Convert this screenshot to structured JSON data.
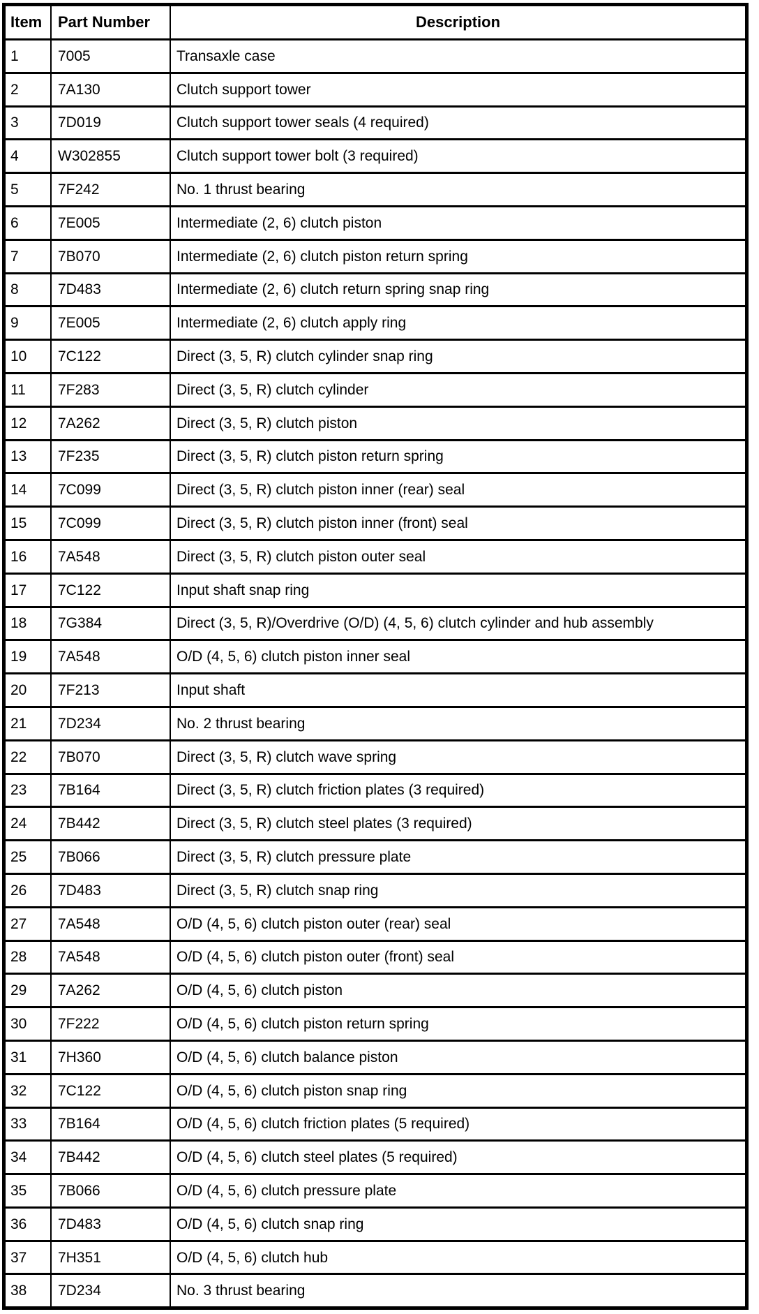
{
  "page": {
    "background_color": "#ffffff",
    "text_color": "#000000",
    "border_color": "#000000"
  },
  "table": {
    "headers": {
      "item": "Item",
      "part_number": "Part Number",
      "description": "Description"
    },
    "rows": [
      {
        "item": "1",
        "part_number": "7005",
        "description": "Transaxle case"
      },
      {
        "item": "2",
        "part_number": "7A130",
        "description": "Clutch support tower"
      },
      {
        "item": "3",
        "part_number": "7D019",
        "description": "Clutch support tower seals (4 required)"
      },
      {
        "item": "4",
        "part_number": "W302855",
        "description": "Clutch support tower bolt (3 required)"
      },
      {
        "item": "5",
        "part_number": "7F242",
        "description": "No. 1 thrust bearing"
      },
      {
        "item": "6",
        "part_number": "7E005",
        "description": "Intermediate (2, 6) clutch piston"
      },
      {
        "item": "7",
        "part_number": "7B070",
        "description": "Intermediate (2, 6) clutch piston return spring"
      },
      {
        "item": "8",
        "part_number": "7D483",
        "description": "Intermediate (2, 6) clutch return spring snap ring"
      },
      {
        "item": "9",
        "part_number": "7E005",
        "description": "Intermediate (2, 6) clutch apply ring"
      },
      {
        "item": "10",
        "part_number": "7C122",
        "description": "Direct (3, 5, R) clutch cylinder snap ring"
      },
      {
        "item": "11",
        "part_number": "7F283",
        "description": "Direct (3, 5, R) clutch cylinder"
      },
      {
        "item": "12",
        "part_number": "7A262",
        "description": "Direct (3, 5, R) clutch piston"
      },
      {
        "item": "13",
        "part_number": "7F235",
        "description": "Direct (3, 5, R) clutch piston return spring"
      },
      {
        "item": "14",
        "part_number": "7C099",
        "description": "Direct (3, 5, R) clutch piston inner (rear) seal"
      },
      {
        "item": "15",
        "part_number": "7C099",
        "description": "Direct (3, 5, R) clutch piston inner (front) seal"
      },
      {
        "item": "16",
        "part_number": "7A548",
        "description": "Direct (3, 5, R) clutch piston outer seal"
      },
      {
        "item": "17",
        "part_number": "7C122",
        "description": "Input shaft snap ring"
      },
      {
        "item": "18",
        "part_number": "7G384",
        "description": "Direct (3, 5, R)/Overdrive (O/D) (4, 5, 6) clutch cylinder and hub assembly"
      },
      {
        "item": "19",
        "part_number": "7A548",
        "description": "O/D (4, 5, 6) clutch piston inner seal"
      },
      {
        "item": "20",
        "part_number": "7F213",
        "description": "Input shaft"
      },
      {
        "item": "21",
        "part_number": "7D234",
        "description": "No. 2 thrust bearing"
      },
      {
        "item": "22",
        "part_number": "7B070",
        "description": "Direct (3, 5, R) clutch wave spring"
      },
      {
        "item": "23",
        "part_number": "7B164",
        "description": "Direct (3, 5, R) clutch friction plates (3 required)"
      },
      {
        "item": "24",
        "part_number": "7B442",
        "description": "Direct (3, 5, R) clutch steel plates (3 required)"
      },
      {
        "item": "25",
        "part_number": "7B066",
        "description": "Direct (3, 5, R) clutch pressure plate"
      },
      {
        "item": "26",
        "part_number": "7D483",
        "description": "Direct (3, 5, R) clutch snap ring"
      },
      {
        "item": "27",
        "part_number": "7A548",
        "description": "O/D (4, 5, 6) clutch piston outer (rear) seal"
      },
      {
        "item": "28",
        "part_number": "7A548",
        "description": "O/D (4, 5, 6) clutch piston outer (front) seal"
      },
      {
        "item": "29",
        "part_number": "7A262",
        "description": "O/D (4, 5, 6) clutch piston"
      },
      {
        "item": "30",
        "part_number": "7F222",
        "description": "O/D (4, 5, 6) clutch piston return spring"
      },
      {
        "item": "31",
        "part_number": "7H360",
        "description": "O/D (4, 5, 6) clutch balance piston"
      },
      {
        "item": "32",
        "part_number": "7C122",
        "description": "O/D (4, 5, 6) clutch piston snap ring"
      },
      {
        "item": "33",
        "part_number": "7B164",
        "description": "O/D (4, 5, 6) clutch friction plates (5 required)"
      },
      {
        "item": "34",
        "part_number": "7B442",
        "description": "O/D (4, 5, 6) clutch steel plates (5 required)"
      },
      {
        "item": "35",
        "part_number": "7B066",
        "description": "O/D (4, 5, 6) clutch pressure plate"
      },
      {
        "item": "36",
        "part_number": "7D483",
        "description": "O/D (4, 5, 6) clutch snap ring"
      },
      {
        "item": "37",
        "part_number": "7H351",
        "description": "O/D (4, 5, 6) clutch hub"
      },
      {
        "item": "38",
        "part_number": "7D234",
        "description": "No. 3 thrust bearing"
      }
    ]
  }
}
